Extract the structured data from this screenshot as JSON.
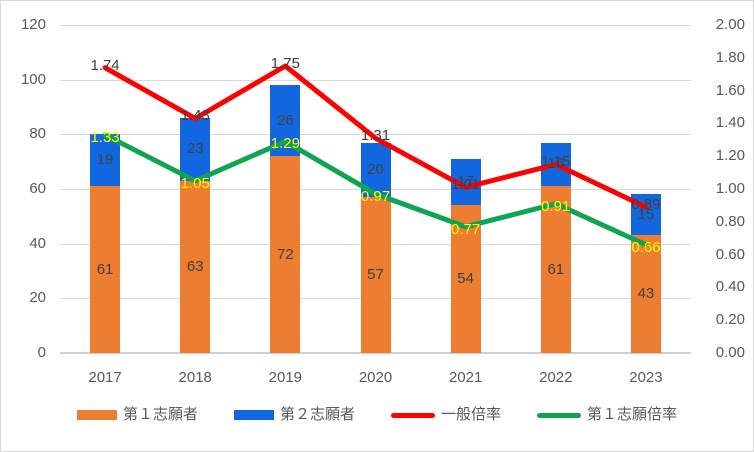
{
  "chart_data": {
    "type": "combo_stacked_bar_line",
    "title": "",
    "categories": [
      "2017",
      "2018",
      "2019",
      "2020",
      "2021",
      "2022",
      "2023"
    ],
    "series": [
      {
        "name": "第１志願者",
        "type": "bar",
        "axis": "left",
        "color": "#ED7D31",
        "label_color": "#404040",
        "values": [
          61,
          63,
          72,
          57,
          54,
          61,
          43
        ],
        "labels": [
          "61",
          "63",
          "72",
          "57",
          "54",
          "61",
          "43"
        ]
      },
      {
        "name": "第２志願者",
        "type": "bar",
        "axis": "left",
        "color": "#1267E0",
        "label_color": "#404040",
        "values": [
          19,
          23,
          26,
          20,
          17,
          16,
          15
        ],
        "labels": [
          "19",
          "23",
          "26",
          "20",
          "17",
          "16",
          "15"
        ]
      },
      {
        "name": "一般倍率",
        "type": "line",
        "axis": "right",
        "color": "#FF0000",
        "label_color": "#404040",
        "values": [
          1.74,
          1.43,
          1.75,
          1.31,
          1.01,
          1.15,
          0.89
        ],
        "labels": [
          "1.74",
          "1.43",
          "1.75",
          "1.31",
          "1.01",
          "1.15",
          "0.89"
        ]
      },
      {
        "name": "第１志願倍率",
        "type": "line",
        "axis": "right",
        "color": "#0FA452",
        "label_color": "#FFFF00",
        "values": [
          1.33,
          1.05,
          1.29,
          0.97,
          0.77,
          0.91,
          0.66
        ],
        "labels": [
          "1.33",
          "1.05",
          "1.29",
          "0.97",
          "0.77",
          "0.91",
          "0.66"
        ]
      }
    ],
    "left_axis": {
      "min": 0,
      "max": 120,
      "tick_labels": [
        "120",
        "100",
        "80",
        "60",
        "40",
        "20",
        "0"
      ]
    },
    "right_axis": {
      "min": 0.0,
      "max": 2.0,
      "tick_labels": [
        "2.00",
        "1.80",
        "1.60",
        "1.40",
        "1.20",
        "1.00",
        "0.80",
        "0.60",
        "0.40",
        "0.20",
        "0.00"
      ]
    },
    "legend": {
      "position": "bottom",
      "entries": [
        "第１志願者",
        "第２志願者",
        "一般倍率",
        "第１志願倍率"
      ]
    },
    "grid": true
  },
  "styles": {
    "gridline_color": "#D9D9D9",
    "axis_line_color": "#CFCFCF",
    "tick_text_color": "#595959",
    "bar_label_color": "#404040",
    "line1_label_color": "#404040",
    "line2_label_color": "#FFFF00",
    "background": "#FFFFFF",
    "border_color": "#D9D9D9"
  }
}
